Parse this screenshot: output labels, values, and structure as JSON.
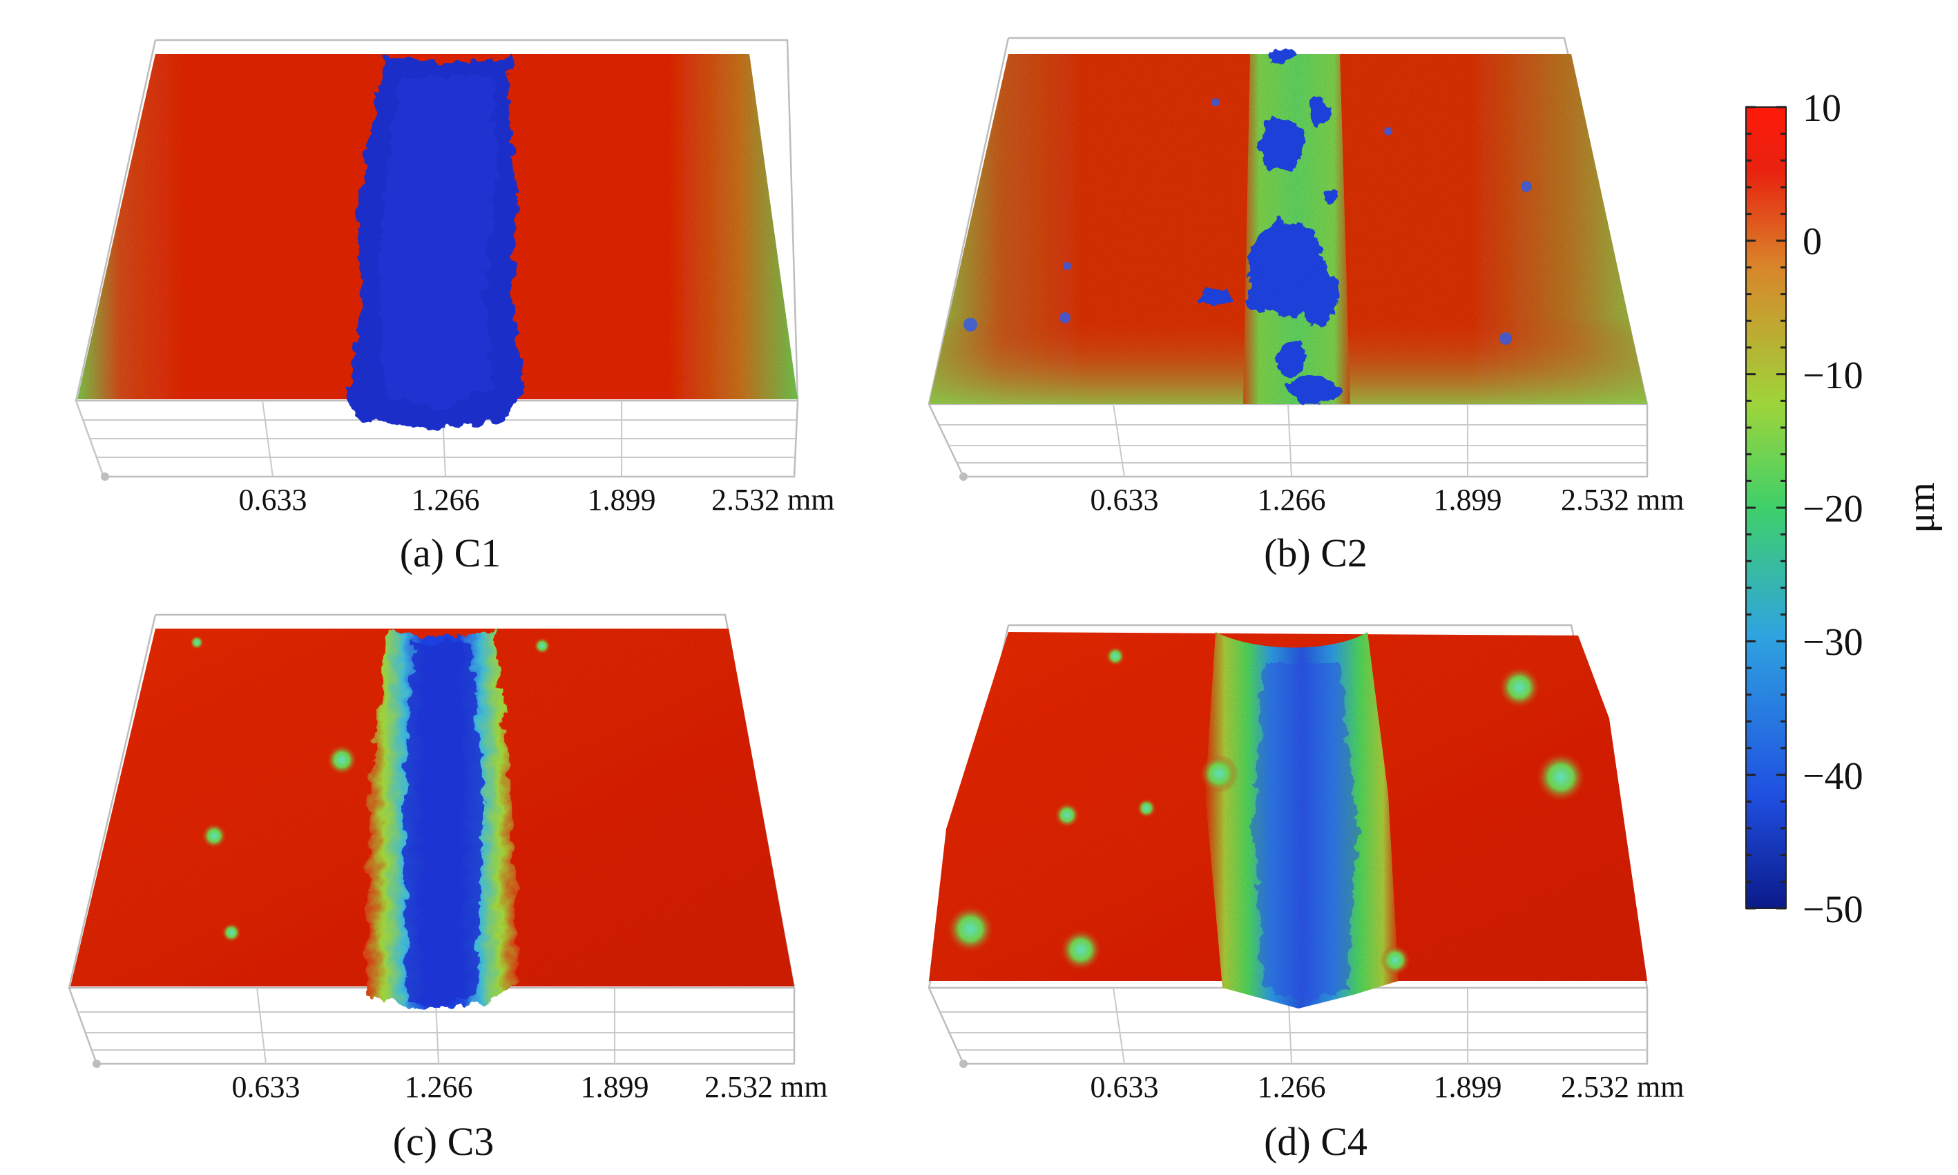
{
  "figure": {
    "panels": [
      {
        "id": "a",
        "caption": "(a) C1",
        "sample": "C1",
        "x_ticks": [
          "0.633",
          "1.266",
          "1.899",
          "2.532 mm"
        ],
        "groove": "deep blue channel, sharp edges"
      },
      {
        "id": "b",
        "caption": "(b) C2",
        "sample": "C2",
        "x_ticks": [
          "0.633",
          "1.266",
          "1.899",
          "2.532 mm"
        ],
        "groove": "narrow green channel with blue pits"
      },
      {
        "id": "c",
        "caption": "(c) C3",
        "sample": "C3",
        "x_ticks": [
          "0.633",
          "1.266",
          "1.899",
          "2.532 mm"
        ],
        "groove": "blue channel with green rims"
      },
      {
        "id": "d",
        "caption": "(d) C4",
        "sample": "C4",
        "x_ticks": [
          "0.633",
          "1.266",
          "1.899",
          "2.532 mm"
        ],
        "groove": "wide shallow green-blue channel"
      }
    ],
    "colorbar": {
      "unit": "μm",
      "min": -50,
      "max": 10,
      "tick_labels": [
        "10",
        "0",
        "−10",
        "−20",
        "−30",
        "−40",
        "−50"
      ],
      "colors": [
        "#0b1a8a",
        "#1f4fe0",
        "#2fa3e0",
        "#3fd06a",
        "#9ed43a",
        "#d9862a",
        "#e8220f",
        "#ff1a0a"
      ]
    }
  }
}
